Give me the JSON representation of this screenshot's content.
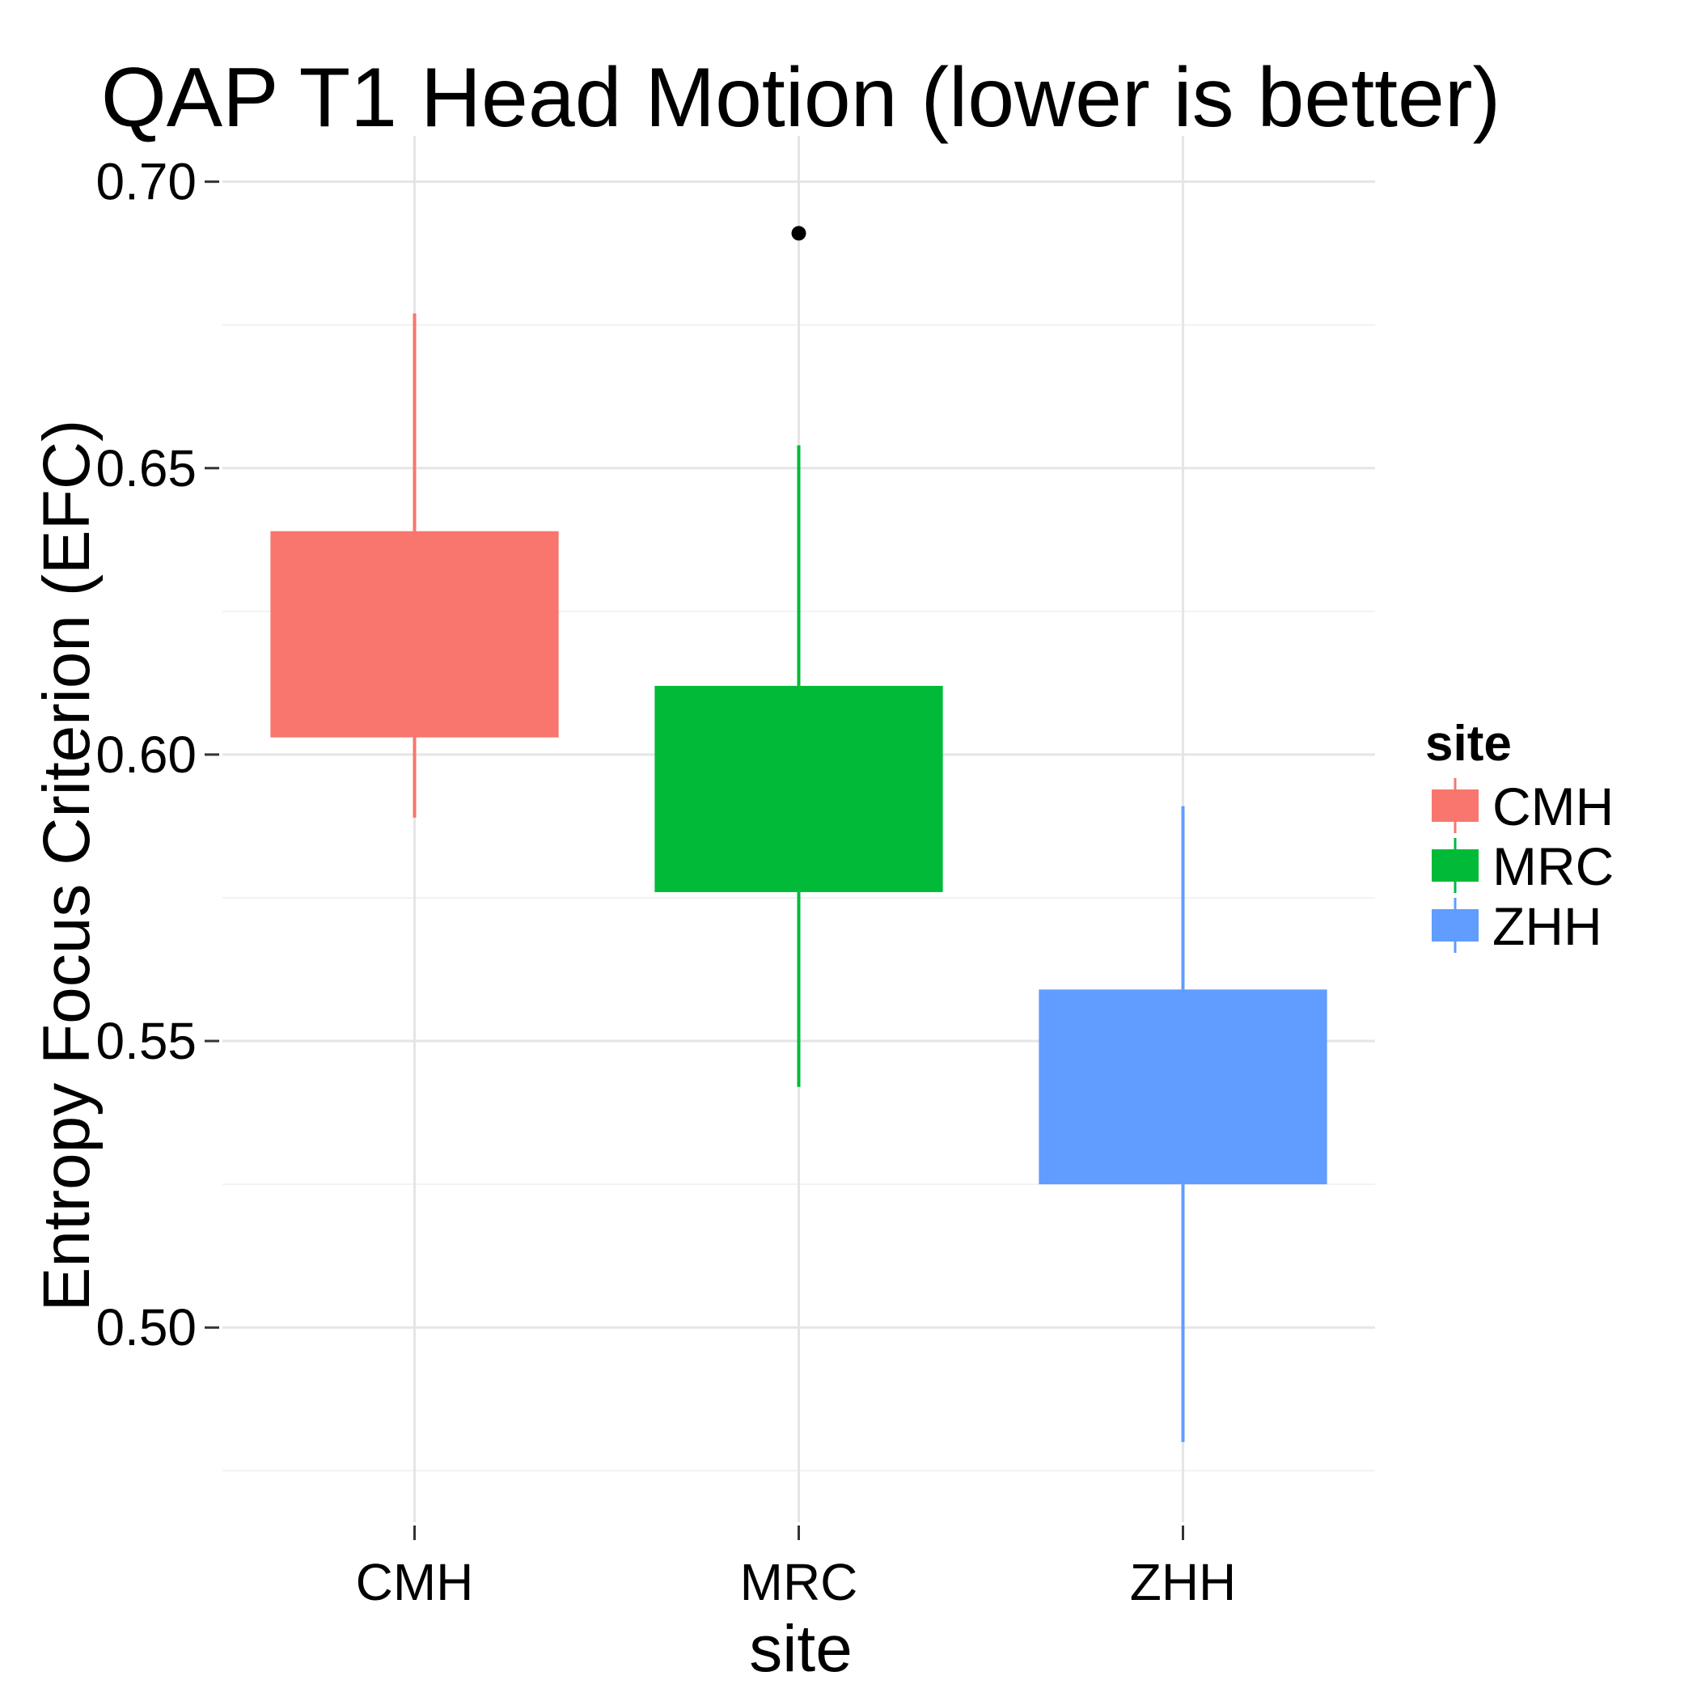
{
  "chart_data": {
    "type": "box",
    "title": "QAP T1 Head Motion (lower is better)",
    "xlabel": "site",
    "ylabel": "Entropy Focus Criterion (EFC)",
    "categories": [
      "CMH",
      "MRC",
      "ZHH"
    ],
    "ylim": [
      0.466,
      0.708
    ],
    "y_ticks": [
      0.5,
      0.55,
      0.6,
      0.65,
      0.7
    ],
    "y_tick_labels": [
      "0.50",
      "0.55",
      "0.60",
      "0.65",
      "0.70"
    ],
    "grid": true,
    "legend": {
      "title": "site",
      "position": "right"
    },
    "series": [
      {
        "name": "CMH",
        "color": "#F8766D",
        "whisker_low": 0.589,
        "q1": 0.603,
        "q3": 0.639,
        "whisker_high": 0.677,
        "outliers": []
      },
      {
        "name": "MRC",
        "color": "#00BA38",
        "whisker_low": 0.542,
        "q1": 0.576,
        "q3": 0.612,
        "whisker_high": 0.654,
        "outliers": [
          0.691
        ]
      },
      {
        "name": "ZHH",
        "color": "#619CFF",
        "whisker_low": 0.48,
        "q1": 0.525,
        "q3": 0.559,
        "whisker_high": 0.591,
        "outliers": []
      }
    ]
  }
}
